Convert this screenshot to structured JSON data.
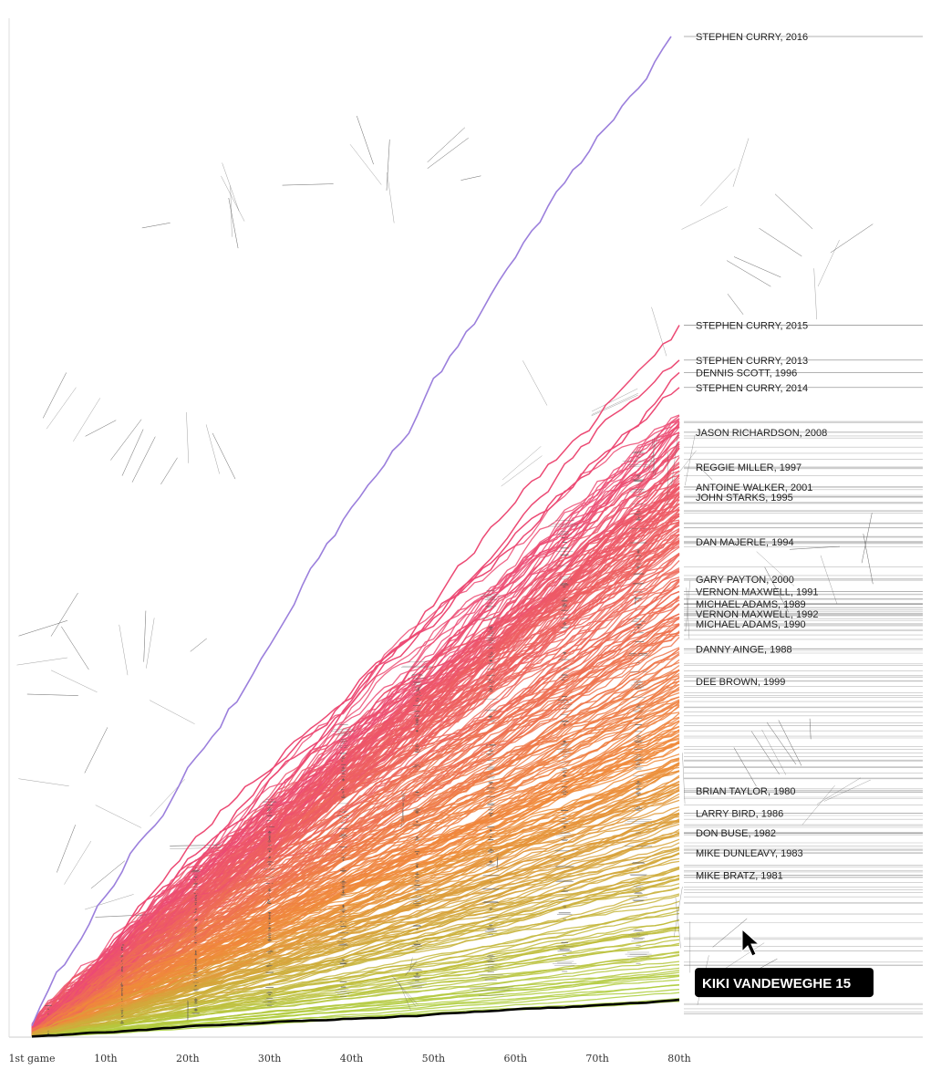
{
  "chart_data": {
    "type": "line",
    "title": "",
    "xlabel": "",
    "ylabel": "",
    "x_ticks": [
      "1st game",
      "10th",
      "20th",
      "30th",
      "40th",
      "50th",
      "60th",
      "70th",
      "80th"
    ],
    "x_range": [
      1,
      82
    ],
    "y_range": [
      0,
      402
    ],
    "grid": false,
    "highlighted_series": [
      {
        "name": "STEPHEN CURRY, 2016",
        "color": "#9b7fdc",
        "games": 79,
        "final": 402
      },
      {
        "name": "KIKI VANDEWEGHE",
        "color": "#000000",
        "games": 80,
        "final": 15
      }
    ],
    "labeled_seasons": [
      {
        "name": "STEPHEN CURRY, 2016",
        "final": 402
      },
      {
        "name": "STEPHEN CURRY, 2015",
        "final": 286
      },
      {
        "name": "STEPHEN CURRY, 2013",
        "final": 272
      },
      {
        "name": "DENNIS SCOTT, 1996",
        "final": 267
      },
      {
        "name": "STEPHEN CURRY, 2014",
        "final": 261
      },
      {
        "name": "JASON RICHARDSON, 2008",
        "final": 243
      },
      {
        "name": "REGGIE MILLER, 1997",
        "final": 229
      },
      {
        "name": "ANTOINE WALKER, 2001",
        "final": 221
      },
      {
        "name": "JOHN STARKS, 1995",
        "final": 217
      },
      {
        "name": "DAN MAJERLE, 1994",
        "final": 199
      },
      {
        "name": "GARY PAYTON, 2000",
        "final": 184
      },
      {
        "name": "VERNON MAXWELL, 1991",
        "final": 179
      },
      {
        "name": "MICHAEL ADAMS, 1989",
        "final": 174
      },
      {
        "name": "VERNON MAXWELL, 1992",
        "final": 170
      },
      {
        "name": "MICHAEL ADAMS, 1990",
        "final": 166
      },
      {
        "name": "DANNY AINGE, 1988",
        "final": 156
      },
      {
        "name": "DEE BROWN, 1999",
        "final": 143
      },
      {
        "name": "BRIAN TAYLOR, 1980",
        "final": 99
      },
      {
        "name": "LARRY BIRD, 1986",
        "final": 90
      },
      {
        "name": "DON BUSE, 1982",
        "final": 82
      },
      {
        "name": "MIKE DUNLEAVY, 1983",
        "final": 74
      },
      {
        "name": "MIKE BRATZ, 1981",
        "final": 65
      }
    ],
    "background_series": {
      "count": 300,
      "final_range": [
        8,
        250
      ],
      "color_scale": [
        "#a6d63c",
        "#f08a3a",
        "#ec4a74"
      ]
    },
    "tooltip": {
      "name": "KIKI VANDEWEGHE",
      "value": "15"
    }
  }
}
